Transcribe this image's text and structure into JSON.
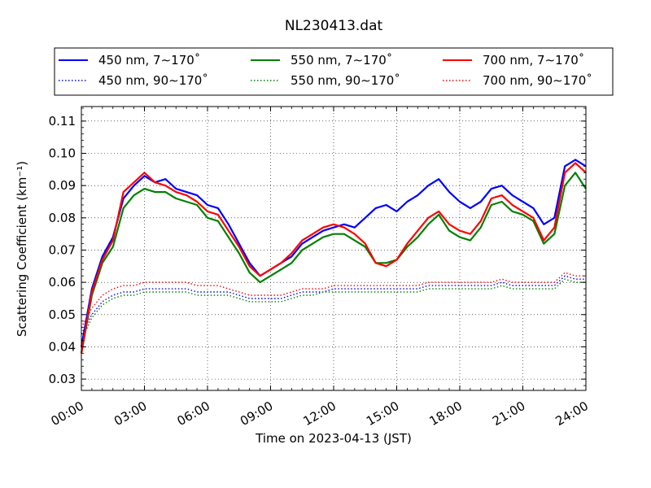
{
  "chart_data": {
    "type": "line",
    "title": "NL230413.dat",
    "xlabel": "Time on 2023-04-13 (JST)",
    "ylabel": "Scattering Coefficient (km⁻¹)",
    "xlim": [
      "00:00",
      "24:00"
    ],
    "x_ticks": [
      "00:00",
      "03:00",
      "06:00",
      "09:00",
      "12:00",
      "15:00",
      "18:00",
      "21:00",
      "24:00"
    ],
    "ylim": [
      0.0265,
      0.1145
    ],
    "y_ticks": [
      "0.03",
      "0.04",
      "0.05",
      "0.06",
      "0.07",
      "0.08",
      "0.09",
      "0.10",
      "0.11"
    ],
    "grid": true,
    "legend_position": "top",
    "x": [
      "00:00",
      "00:30",
      "01:00",
      "01:30",
      "02:00",
      "02:30",
      "03:00",
      "03:30",
      "04:00",
      "04:30",
      "05:00",
      "05:30",
      "06:00",
      "06:30",
      "07:00",
      "07:30",
      "08:00",
      "08:30",
      "09:00",
      "09:30",
      "10:00",
      "10:30",
      "11:00",
      "11:30",
      "12:00",
      "12:30",
      "13:00",
      "13:30",
      "14:00",
      "14:30",
      "15:00",
      "15:30",
      "16:00",
      "16:30",
      "17:00",
      "17:30",
      "18:00",
      "18:30",
      "19:00",
      "19:30",
      "20:00",
      "20:30",
      "21:00",
      "21:30",
      "22:00",
      "22:30",
      "23:00",
      "23:30",
      "24:00"
    ],
    "series": [
      {
        "name": "450 nm, 7∼170˚",
        "color": "#0000ff",
        "style": "solid",
        "values": [
          0.04,
          0.058,
          0.068,
          0.074,
          0.086,
          0.09,
          0.093,
          0.091,
          0.092,
          0.089,
          0.088,
          0.087,
          0.084,
          0.083,
          0.078,
          0.072,
          0.066,
          0.062,
          0.064,
          0.066,
          0.068,
          0.072,
          0.074,
          0.076,
          0.077,
          0.078,
          0.077,
          0.08,
          0.083,
          0.084,
          0.082,
          0.085,
          0.087,
          0.09,
          0.092,
          0.088,
          0.085,
          0.083,
          0.085,
          0.089,
          0.09,
          0.087,
          0.085,
          0.083,
          0.078,
          0.08,
          0.096,
          0.098,
          0.096
        ]
      },
      {
        "name": "450 nm, 90∼170˚",
        "color": "#0000ff",
        "style": "dotted",
        "values": [
          0.044,
          0.05,
          0.054,
          0.056,
          0.057,
          0.057,
          0.058,
          0.058,
          0.058,
          0.058,
          0.058,
          0.057,
          0.057,
          0.057,
          0.057,
          0.056,
          0.055,
          0.055,
          0.055,
          0.055,
          0.056,
          0.057,
          0.057,
          0.057,
          0.058,
          0.058,
          0.058,
          0.058,
          0.058,
          0.058,
          0.058,
          0.058,
          0.058,
          0.059,
          0.059,
          0.059,
          0.059,
          0.059,
          0.059,
          0.059,
          0.06,
          0.059,
          0.059,
          0.059,
          0.059,
          0.059,
          0.062,
          0.061,
          0.061
        ]
      },
      {
        "name": "550 nm, 7∼170˚",
        "color": "#008000",
        "style": "solid",
        "values": [
          0.038,
          0.056,
          0.066,
          0.071,
          0.083,
          0.087,
          0.089,
          0.088,
          0.088,
          0.086,
          0.085,
          0.084,
          0.08,
          0.079,
          0.074,
          0.069,
          0.063,
          0.06,
          0.062,
          0.064,
          0.066,
          0.07,
          0.072,
          0.074,
          0.075,
          0.075,
          0.073,
          0.071,
          0.066,
          0.066,
          0.067,
          0.071,
          0.074,
          0.078,
          0.081,
          0.076,
          0.074,
          0.073,
          0.077,
          0.084,
          0.085,
          0.082,
          0.081,
          0.079,
          0.072,
          0.075,
          0.09,
          0.094,
          0.089
        ]
      },
      {
        "name": "550 nm, 90∼170˚",
        "color": "#008000",
        "style": "dotted",
        "values": [
          0.042,
          0.049,
          0.053,
          0.055,
          0.056,
          0.056,
          0.057,
          0.057,
          0.057,
          0.057,
          0.057,
          0.056,
          0.056,
          0.056,
          0.056,
          0.055,
          0.054,
          0.054,
          0.054,
          0.054,
          0.055,
          0.056,
          0.056,
          0.057,
          0.057,
          0.057,
          0.057,
          0.057,
          0.057,
          0.057,
          0.057,
          0.057,
          0.057,
          0.058,
          0.058,
          0.058,
          0.058,
          0.058,
          0.058,
          0.058,
          0.059,
          0.058,
          0.058,
          0.058,
          0.058,
          0.058,
          0.061,
          0.06,
          0.06
        ]
      },
      {
        "name": "700 nm, 7∼170˚",
        "color": "#ff0000",
        "style": "solid",
        "values": [
          0.038,
          0.057,
          0.067,
          0.073,
          0.088,
          0.091,
          0.094,
          0.091,
          0.09,
          0.088,
          0.087,
          0.085,
          0.082,
          0.081,
          0.076,
          0.071,
          0.065,
          0.062,
          0.064,
          0.066,
          0.069,
          0.073,
          0.075,
          0.077,
          0.078,
          0.077,
          0.075,
          0.072,
          0.066,
          0.065,
          0.067,
          0.072,
          0.076,
          0.08,
          0.082,
          0.078,
          0.076,
          0.075,
          0.079,
          0.086,
          0.087,
          0.084,
          0.082,
          0.08,
          0.073,
          0.077,
          0.094,
          0.097,
          0.094
        ]
      },
      {
        "name": "700 nm, 90∼170˚",
        "color": "#ff0000",
        "style": "dotted",
        "values": [
          0.046,
          0.052,
          0.056,
          0.058,
          0.059,
          0.059,
          0.06,
          0.06,
          0.06,
          0.06,
          0.06,
          0.059,
          0.059,
          0.059,
          0.058,
          0.057,
          0.056,
          0.056,
          0.056,
          0.056,
          0.057,
          0.058,
          0.058,
          0.058,
          0.059,
          0.059,
          0.059,
          0.059,
          0.059,
          0.059,
          0.059,
          0.059,
          0.059,
          0.06,
          0.06,
          0.06,
          0.06,
          0.06,
          0.06,
          0.06,
          0.061,
          0.06,
          0.06,
          0.06,
          0.06,
          0.06,
          0.063,
          0.062,
          0.062
        ]
      }
    ]
  }
}
